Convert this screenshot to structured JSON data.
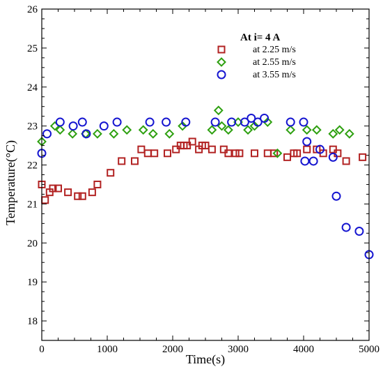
{
  "chart_data": {
    "type": "scatter",
    "xlabel": "Time(s)",
    "ylabel": "Temperature(°C)",
    "xlim": [
      0,
      5000
    ],
    "ylim": [
      17.5,
      26
    ],
    "x_ticks": [
      "0",
      "1000",
      "2000",
      "3000",
      "4000",
      "5000"
    ],
    "y_ticks": [
      "18",
      "19",
      "20",
      "21",
      "22",
      "23",
      "24",
      "25",
      "26"
    ],
    "legend_title": "At i= 4 A",
    "legend_position": "top-right",
    "series": [
      {
        "name": "at 2.25 m/s",
        "marker": "square",
        "color": "#b22222",
        "x": [
          0,
          50,
          120,
          170,
          250,
          400,
          550,
          620,
          770,
          850,
          1050,
          1220,
          1420,
          1520,
          1620,
          1720,
          1920,
          2050,
          2120,
          2170,
          2220,
          2300,
          2400,
          2450,
          2500,
          2600,
          2780,
          2850,
          2960,
          3020,
          3250,
          3450,
          3550,
          3750,
          3850,
          3900,
          4050,
          4200,
          4300,
          4450,
          4520,
          4650,
          4900
        ],
        "y": [
          21.5,
          21.1,
          21.3,
          21.4,
          21.4,
          21.3,
          21.2,
          21.2,
          21.3,
          21.5,
          21.8,
          22.1,
          22.1,
          22.4,
          22.3,
          22.3,
          22.3,
          22.4,
          22.5,
          22.5,
          22.5,
          22.6,
          22.4,
          22.5,
          22.5,
          22.4,
          22.4,
          22.3,
          22.3,
          22.3,
          22.3,
          22.3,
          22.3,
          22.2,
          22.3,
          22.3,
          22.4,
          22.4,
          22.3,
          22.4,
          22.3,
          22.1,
          22.2
        ]
      },
      {
        "name": "at 2.55 m/s",
        "marker": "diamond",
        "color": "#2ea010",
        "x": [
          0,
          200,
          280,
          470,
          670,
          850,
          1100,
          1300,
          1550,
          1700,
          1950,
          2150,
          2600,
          2700,
          2750,
          2850,
          3000,
          3150,
          3250,
          3450,
          3600,
          3800,
          4050,
          4200,
          4450,
          4550,
          4700
        ],
        "y": [
          22.6,
          23.0,
          22.9,
          22.8,
          22.8,
          22.8,
          22.8,
          22.9,
          22.9,
          22.8,
          22.8,
          23.0,
          22.9,
          23.4,
          23.0,
          22.9,
          23.1,
          22.9,
          23.0,
          23.1,
          22.3,
          22.9,
          22.9,
          22.9,
          22.8,
          22.9,
          22.8
        ]
      },
      {
        "name": "at 3.55 m/s",
        "marker": "circle",
        "color": "#1515d0",
        "x": [
          0,
          80,
          280,
          480,
          620,
          680,
          950,
          1150,
          1650,
          1900,
          2200,
          2650,
          2900,
          3100,
          3200,
          3300,
          3400,
          3800,
          4000,
          4020,
          4050,
          4150,
          4250,
          4450,
          4500,
          4650,
          4850,
          5000
        ],
        "y": [
          22.3,
          22.8,
          23.1,
          23.0,
          23.1,
          22.8,
          23.0,
          23.1,
          23.1,
          23.1,
          23.1,
          23.1,
          23.1,
          23.1,
          23.2,
          23.1,
          23.2,
          23.1,
          23.1,
          22.1,
          22.6,
          22.1,
          22.4,
          22.2,
          21.2,
          20.4,
          20.3,
          19.7
        ]
      }
    ]
  }
}
